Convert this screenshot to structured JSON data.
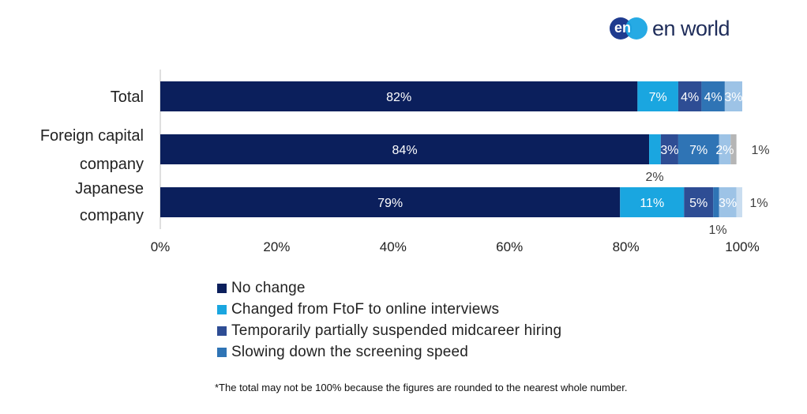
{
  "brand": {
    "logo_mark": "en",
    "logo_text": "en world",
    "colors": {
      "primary": "#1f3b8f",
      "secondary": "#1aa5e3"
    }
  },
  "chart_data": {
    "type": "bar",
    "orientation": "horizontal",
    "stacked": true,
    "categories": [
      [
        "Total"
      ],
      [
        "Foreign capital",
        "company"
      ],
      [
        "Japanese",
        "company"
      ]
    ],
    "series": [
      {
        "name": "No change",
        "color": "#0b1f5c",
        "values": [
          82,
          84,
          79
        ]
      },
      {
        "name": "Changed from FtoF to online interviews",
        "color": "#1aa6e0",
        "values": [
          7,
          2,
          11
        ]
      },
      {
        "name": "Temporarily partially suspended midcareer hiring",
        "color": "#2e4d94",
        "values": [
          4,
          3,
          5
        ]
      },
      {
        "name": "Slowing down the screening speed",
        "color": "#2f74b5",
        "values": [
          4,
          7,
          1
        ]
      },
      {
        "color": "#9dc3e6",
        "values": [
          3,
          2,
          3
        ]
      },
      {
        "color": "#b5b5b5",
        "values": [
          0,
          1,
          0
        ]
      },
      {
        "color": "#c9ddf0",
        "values": [
          0,
          0,
          1
        ]
      }
    ],
    "data_labels": [
      [
        "82%",
        "7%",
        "4%",
        "4%",
        "3%",
        "",
        ""
      ],
      [
        "84%",
        "3%",
        "7%",
        "2%",
        "1%",
        "2%"
      ],
      [
        "79%",
        "11%",
        "5%",
        "3%",
        "1%",
        "1%"
      ]
    ],
    "xlim": [
      0,
      100
    ],
    "xticks": [
      "0%",
      "20%",
      "40%",
      "60%",
      "80%",
      "100%"
    ],
    "legend_position": "bottom",
    "grid": false
  },
  "legend": [
    {
      "label": "No change",
      "color": "#0b1f5c"
    },
    {
      "label": "Changed from FtoF to online interviews",
      "color": "#1aa6e0"
    },
    {
      "label": "Temporarily partially suspended midcareer hiring",
      "color": "#2e4d94"
    },
    {
      "label": "Slowing down the screening speed",
      "color": "#2f74b5"
    }
  ],
  "footnote": "*The total may not be 100% because the figures are rounded to the nearest whole number."
}
